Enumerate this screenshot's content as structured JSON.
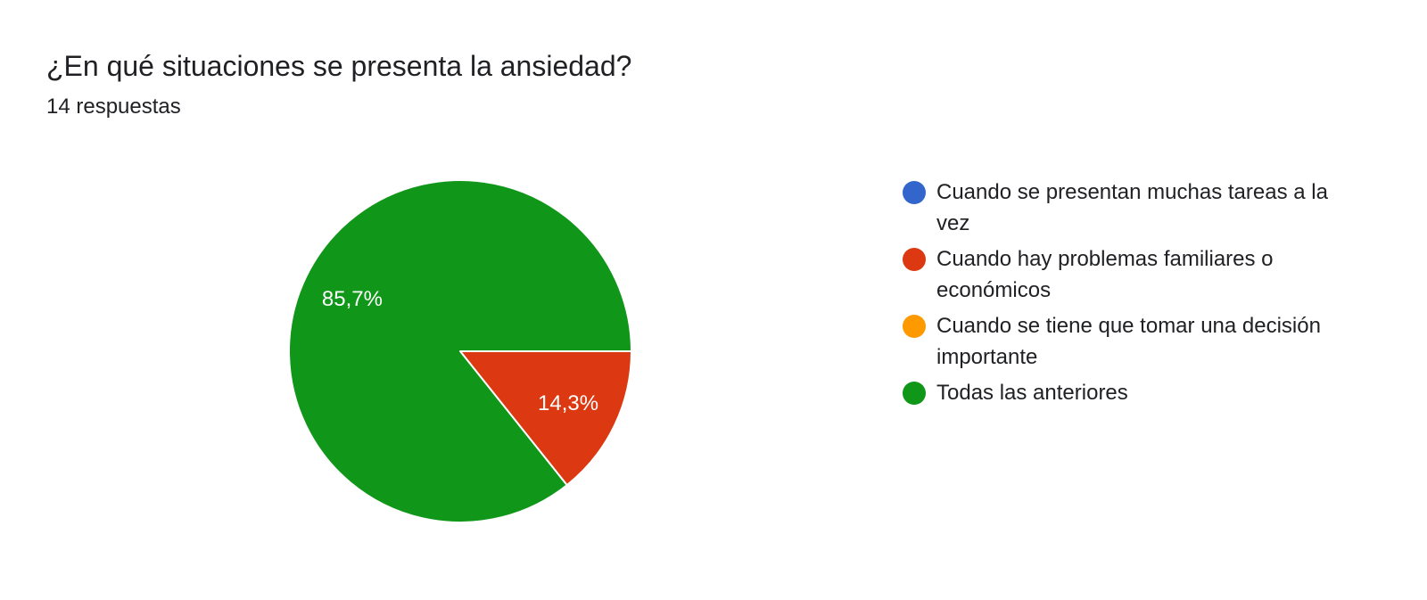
{
  "header": {
    "title": "¿En qué situaciones se presenta la ansiedad?",
    "responses": "14 respuestas"
  },
  "chart_data": {
    "type": "pie",
    "title": "¿En qué situaciones se presenta la ansiedad?",
    "total_responses": 14,
    "legend_position": "right",
    "start_angle_deg": 90,
    "direction": "clockwise",
    "slices": [
      {
        "label": "Cuando se presentan muchas tareas a la vez",
        "value": 0,
        "percent_label": "",
        "color": "#3366cc"
      },
      {
        "label": "Cuando hay problemas familiares o económicos",
        "value": 2,
        "percent_label": "14,3%",
        "color": "#dc3912"
      },
      {
        "label": "Cuando se tiene que tomar una decisión importante",
        "value": 0,
        "percent_label": "",
        "color": "#ff9900"
      },
      {
        "label": "Todas las anteriores",
        "value": 12,
        "percent_label": "85,7%",
        "color": "#109618"
      }
    ]
  }
}
